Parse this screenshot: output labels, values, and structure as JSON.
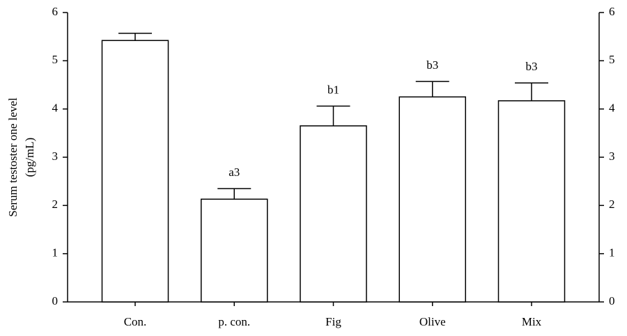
{
  "chart_data": {
    "type": "bar",
    "ylabel": [
      "Serum testoster one level",
      "(pg/mL)"
    ],
    "categories": [
      "Con.",
      "p. con.",
      "Fig",
      "Olive",
      "Mix"
    ],
    "values": [
      5.42,
      2.13,
      3.65,
      4.25,
      4.17
    ],
    "errors": [
      0.15,
      0.22,
      0.41,
      0.32,
      0.37
    ],
    "annotations": [
      null,
      "a3",
      "b1",
      "b3",
      "b3"
    ],
    "color": "#ffffff",
    "ylim": [
      0,
      6
    ],
    "yticks": [
      0,
      1,
      2,
      3,
      4,
      5,
      6
    ],
    "y2lim": [
      0,
      6
    ],
    "y2ticks": [
      0,
      1,
      2,
      3,
      4,
      5,
      6
    ],
    "grid": false
  }
}
